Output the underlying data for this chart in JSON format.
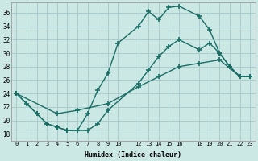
{
  "xlabel": "Humidex (Indice chaleur)",
  "bg_color": "#cce8e5",
  "line_color": "#1a6e65",
  "grid_color": "#aacccc",
  "ylim": [
    17.0,
    37.5
  ],
  "xlim": [
    -0.5,
    23.5
  ],
  "yticks": [
    18,
    20,
    22,
    24,
    26,
    28,
    30,
    32,
    34,
    36
  ],
  "xticks": [
    0,
    1,
    2,
    3,
    4,
    5,
    6,
    7,
    8,
    9,
    10,
    12,
    13,
    14,
    15,
    16,
    18,
    19,
    20,
    21,
    22,
    23
  ],
  "line1_x": [
    0,
    1,
    2,
    3,
    4,
    5,
    6,
    7,
    8,
    9,
    10,
    12,
    13,
    14,
    15,
    16,
    18,
    19,
    20,
    21,
    22,
    23
  ],
  "line1_y": [
    24.0,
    22.5,
    21.0,
    19.5,
    19.0,
    18.5,
    18.5,
    21.0,
    24.5,
    27.0,
    31.5,
    34.0,
    36.2,
    35.0,
    36.8,
    37.0,
    35.5,
    33.5,
    30.0,
    28.0,
    26.5,
    26.5
  ],
  "line2_x": [
    0,
    2,
    3,
    4,
    5,
    6,
    7,
    8,
    9,
    12,
    13,
    14,
    15,
    16,
    18,
    19,
    20,
    21,
    22,
    23
  ],
  "line2_y": [
    24.0,
    21.0,
    19.5,
    19.0,
    18.5,
    18.5,
    18.5,
    19.5,
    21.5,
    25.5,
    27.5,
    29.5,
    31.0,
    32.0,
    30.5,
    31.5,
    30.0,
    28.0,
    26.5,
    26.5
  ],
  "line3_x": [
    0,
    4,
    6,
    9,
    12,
    14,
    16,
    18,
    20,
    22,
    23
  ],
  "line3_y": [
    24.0,
    21.0,
    21.5,
    22.5,
    25.0,
    26.5,
    28.0,
    28.5,
    29.0,
    26.5,
    26.5
  ]
}
